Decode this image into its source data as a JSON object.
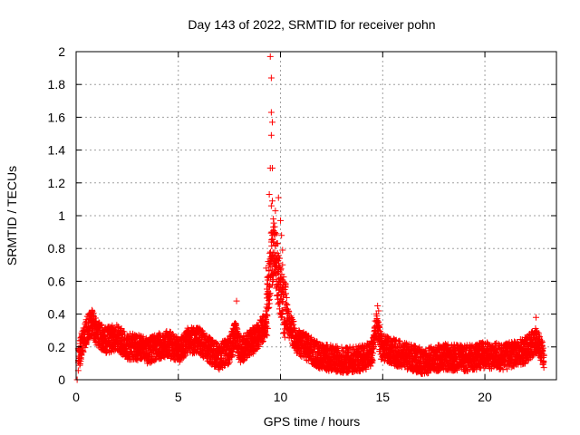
{
  "chart_data": {
    "type": "scatter",
    "title": "Day 143 of 2022, SRMTID for receiver pohn",
    "xlabel": "GPS time / hours",
    "ylabel": "SRMTID / TECUs",
    "xlim": [
      0,
      23.5
    ],
    "ylim": [
      0,
      2
    ],
    "xticks": [
      0,
      5,
      10,
      15,
      20
    ],
    "xtick_labels": [
      "0",
      "5",
      "10",
      "15",
      "20"
    ],
    "yticks": [
      0,
      0.2,
      0.4,
      0.6,
      0.8,
      1,
      1.2,
      1.4,
      1.6,
      1.8,
      2
    ],
    "ytick_labels": [
      "0",
      "0.2",
      "0.4",
      "0.6",
      "0.8",
      "1",
      "1.2",
      "1.4",
      "1.6",
      "1.8",
      "2"
    ],
    "grid": true,
    "marker": "+",
    "marker_color": "#ff0000",
    "series": [
      {
        "name": "SRMTID",
        "baseline": [
          [
            0.0,
            0.0
          ],
          [
            0.1,
            0.12
          ],
          [
            0.3,
            0.22
          ],
          [
            0.6,
            0.33
          ],
          [
            0.8,
            0.35
          ],
          [
            1.0,
            0.28
          ],
          [
            1.5,
            0.24
          ],
          [
            2.0,
            0.26
          ],
          [
            2.5,
            0.2
          ],
          [
            3.0,
            0.2
          ],
          [
            3.5,
            0.17
          ],
          [
            4.0,
            0.2
          ],
          [
            4.5,
            0.22
          ],
          [
            5.0,
            0.18
          ],
          [
            5.5,
            0.24
          ],
          [
            6.0,
            0.24
          ],
          [
            6.5,
            0.18
          ],
          [
            7.0,
            0.14
          ],
          [
            7.5,
            0.18
          ],
          [
            7.8,
            0.28
          ],
          [
            8.0,
            0.18
          ],
          [
            8.5,
            0.22
          ],
          [
            9.0,
            0.28
          ],
          [
            9.3,
            0.35
          ],
          [
            9.5,
            0.7
          ],
          [
            9.7,
            0.8
          ],
          [
            9.9,
            0.62
          ],
          [
            10.1,
            0.48
          ],
          [
            10.4,
            0.34
          ],
          [
            10.8,
            0.24
          ],
          [
            11.5,
            0.18
          ],
          [
            12.0,
            0.14
          ],
          [
            13.0,
            0.12
          ],
          [
            14.0,
            0.13
          ],
          [
            14.5,
            0.16
          ],
          [
            14.7,
            0.35
          ],
          [
            14.9,
            0.2
          ],
          [
            15.5,
            0.17
          ],
          [
            16.0,
            0.15
          ],
          [
            17.0,
            0.11
          ],
          [
            18.0,
            0.14
          ],
          [
            19.0,
            0.13
          ],
          [
            20.0,
            0.15
          ],
          [
            21.0,
            0.14
          ],
          [
            22.0,
            0.18
          ],
          [
            22.5,
            0.24
          ],
          [
            22.9,
            0.15
          ]
        ],
        "outliers": [
          [
            9.5,
            1.97
          ],
          [
            9.55,
            1.84
          ],
          [
            9.55,
            1.63
          ],
          [
            9.6,
            1.57
          ],
          [
            9.55,
            1.49
          ],
          [
            9.5,
            1.29
          ],
          [
            9.6,
            1.29
          ],
          [
            9.45,
            1.13
          ],
          [
            9.6,
            1.09
          ],
          [
            9.55,
            1.06
          ],
          [
            9.9,
            1.11
          ],
          [
            9.75,
            1.03
          ],
          [
            9.65,
            0.98
          ],
          [
            10.0,
            0.97
          ],
          [
            9.65,
            0.93
          ],
          [
            9.8,
            0.89
          ],
          [
            10.05,
            0.88
          ],
          [
            9.55,
            0.84
          ],
          [
            9.75,
            0.82
          ],
          [
            10.1,
            0.79
          ],
          [
            9.85,
            0.77
          ],
          [
            9.6,
            0.76
          ],
          [
            9.95,
            0.74
          ],
          [
            9.4,
            0.72
          ],
          [
            9.7,
            0.7
          ],
          [
            10.1,
            0.7
          ],
          [
            9.3,
            0.68
          ],
          [
            9.9,
            0.66
          ],
          [
            9.55,
            0.64
          ],
          [
            10.0,
            0.62
          ],
          [
            9.8,
            0.6
          ],
          [
            9.6,
            0.58
          ],
          [
            10.2,
            0.55
          ],
          [
            9.45,
            0.52
          ],
          [
            10.3,
            0.5
          ],
          [
            7.85,
            0.48
          ],
          [
            14.75,
            0.45
          ],
          [
            14.8,
            0.42
          ],
          [
            22.5,
            0.38
          ],
          [
            0.05,
            0.0
          ]
        ]
      }
    ]
  }
}
